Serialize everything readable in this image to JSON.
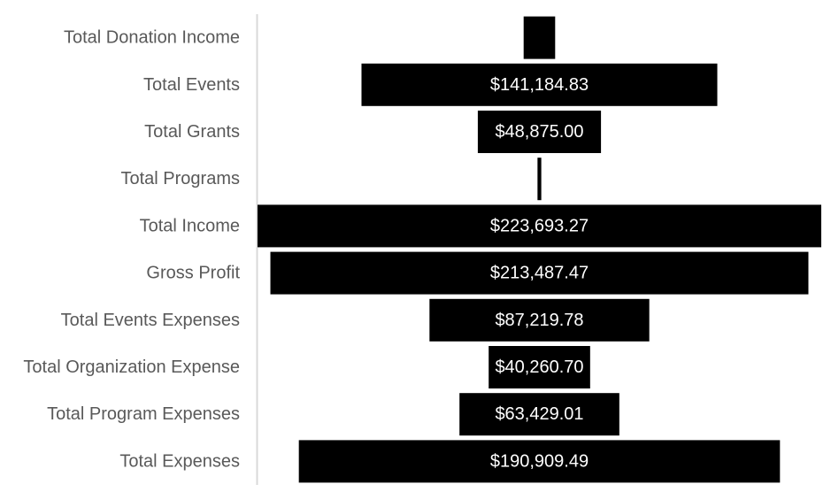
{
  "chart_data": {
    "type": "bar",
    "orientation": "horizontal",
    "layout": "funnel-centered",
    "categories": [
      "Total Donation Income",
      "Total Events",
      "Total Grants",
      "Total Programs",
      "Total Income",
      "Gross Profit",
      "Total Events Expenses",
      "Total Organization Expense",
      "Total Program Expenses",
      "Total Expenses"
    ],
    "values": [
      12500,
      141184.83,
      48875.0,
      1500,
      223693.27,
      213487.47,
      87219.78,
      40260.7,
      63429.01,
      190909.49
    ],
    "data_labels": [
      "",
      "$141,184.83",
      "$48,875.00",
      "",
      "$223,693.27",
      "$213,487.47",
      "$87,219.78",
      "$40,260.70",
      "$63,429.01",
      "$190,909.49"
    ],
    "xlim": [
      0,
      223693.27
    ],
    "title": "",
    "xlabel": "",
    "ylabel": "",
    "grid": false,
    "legend": "none",
    "bar_color": "#000000",
    "label_color": "#595959",
    "value_label_color": "#ffffff",
    "axis_color": "#d9d9d9"
  }
}
